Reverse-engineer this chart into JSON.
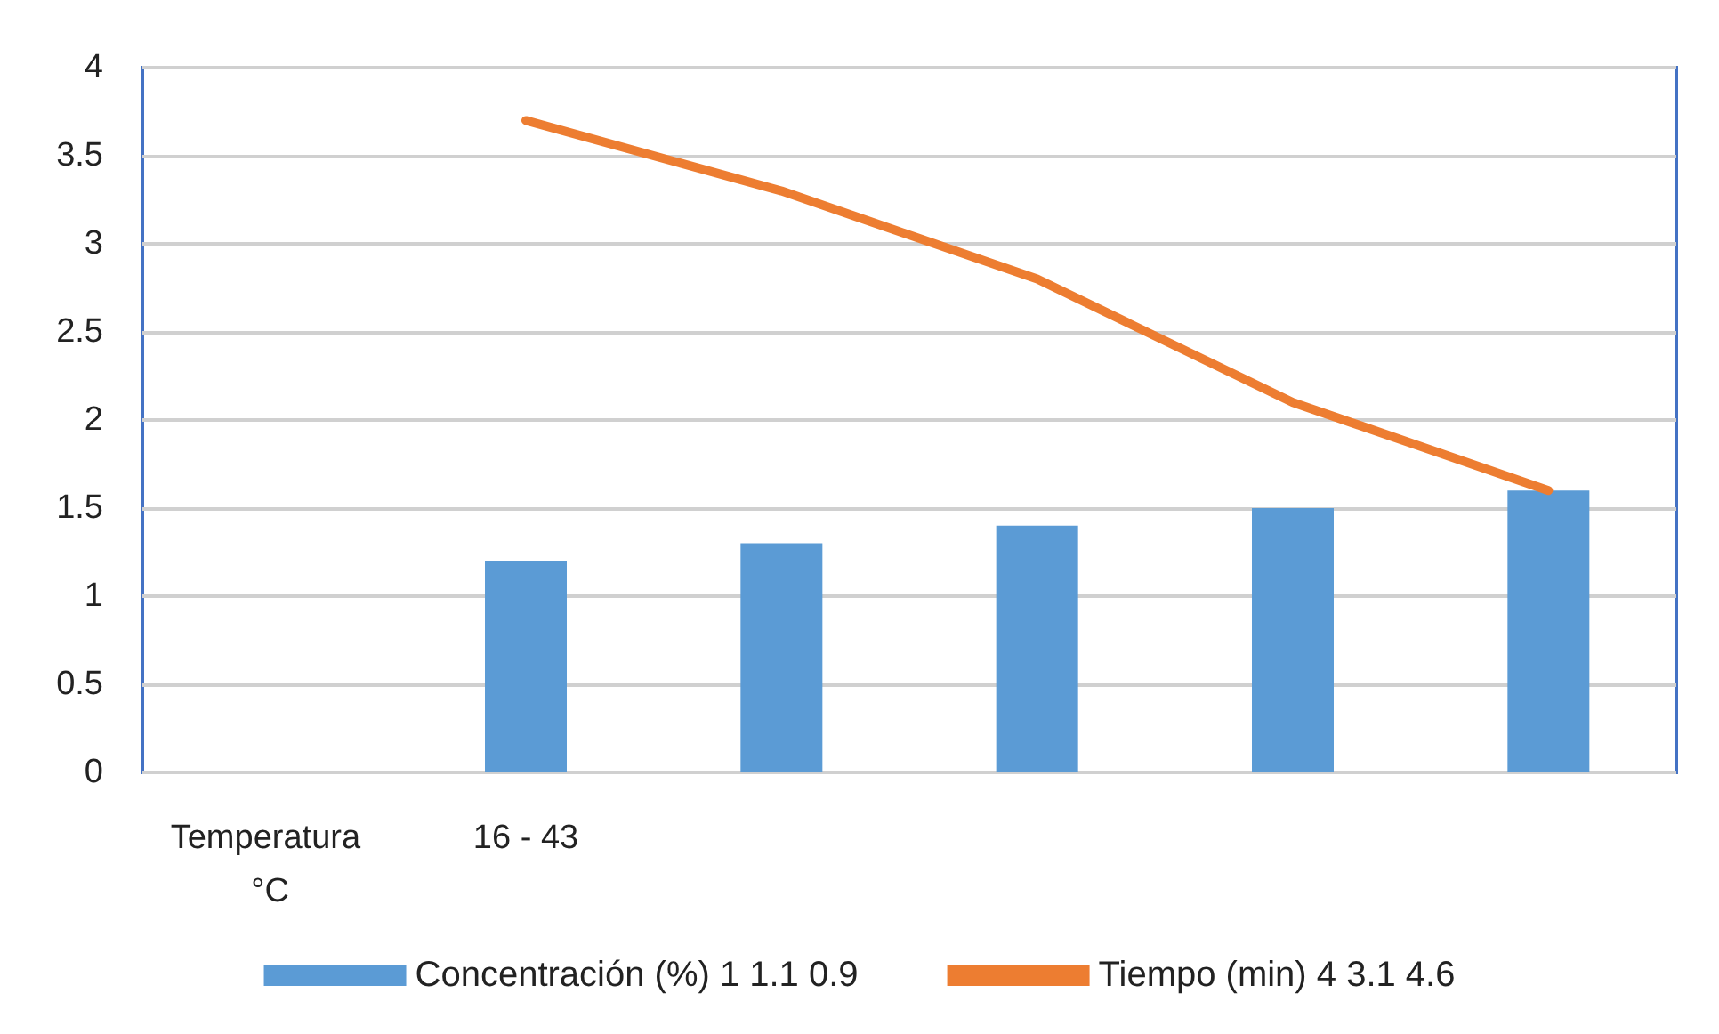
{
  "chart_data": {
    "type": "bar",
    "categories": [
      "Temperatura °C",
      "16 - 43",
      null,
      null,
      null,
      null
    ],
    "series": [
      {
        "name": "Concentración (%) 1 1.1 0.9",
        "color": "#5b9bd5",
        "values": [
          null,
          1.2,
          1.3,
          1.4,
          1.5,
          1.6
        ]
      },
      {
        "name": "Tiempo (min) 4 3.1 4.6",
        "type": "line",
        "color": "#ed7d31",
        "values": [
          null,
          3.7,
          3.3,
          2.8,
          2.1,
          1.6
        ]
      }
    ],
    "ylim": [
      0,
      4
    ],
    "yticks": [
      0,
      0.5,
      1,
      1.5,
      2,
      2.5,
      3,
      3.5,
      4
    ],
    "grid": "y",
    "legend": "bottom",
    "marker": "none"
  }
}
